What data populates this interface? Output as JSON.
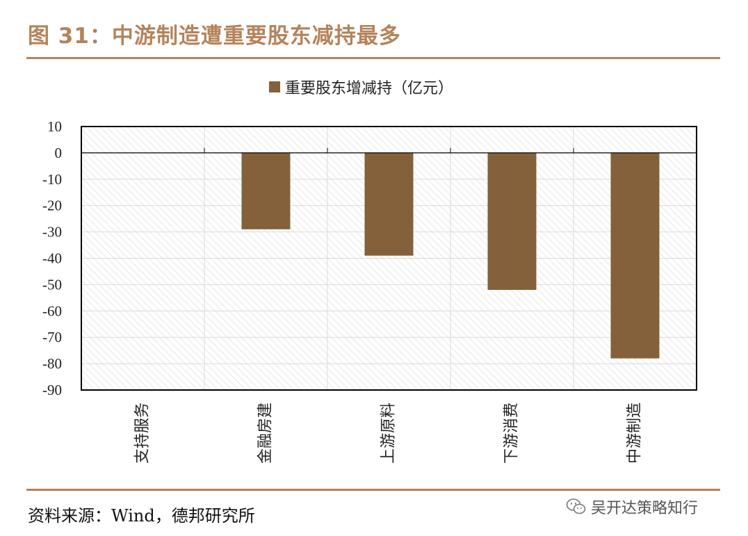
{
  "figure": {
    "title": "图 31：中游制造遭重要股东减持最多",
    "source": "资料来源：Wind，德邦研究所",
    "watermark": "吴开达策略知行"
  },
  "chart_data": {
    "type": "bar",
    "title": "",
    "xlabel": "",
    "ylabel": "",
    "categories": [
      "支持服务",
      "金融房建",
      "上游原料",
      "下游消费",
      "中游制造"
    ],
    "series": [
      {
        "name": "重要股东增减持（亿元）",
        "values": [
          0,
          -29,
          -39,
          -52,
          -78
        ],
        "color": "#84613a"
      }
    ],
    "ylim": [
      -90,
      10
    ],
    "yticks": [
      10,
      0,
      -10,
      -20,
      -30,
      -40,
      -50,
      -60,
      -70,
      -80,
      -90
    ],
    "grid": true,
    "legend": "top-center",
    "colors": {
      "bar": "#84613a",
      "accent": "#b5835a"
    }
  }
}
